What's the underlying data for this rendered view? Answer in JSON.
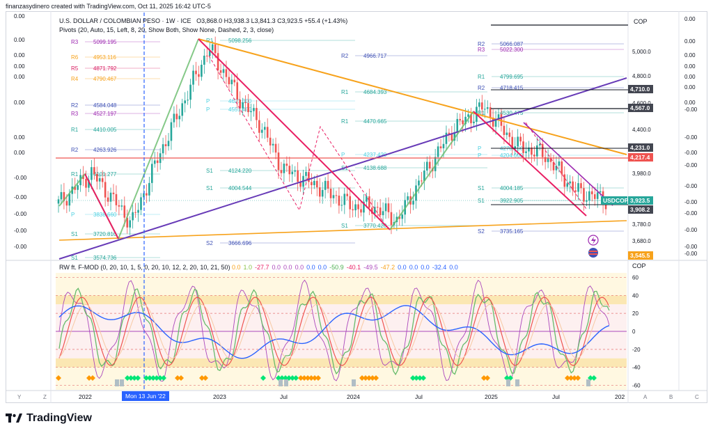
{
  "header": {
    "caption": "finanzasydinero created with TradingView.com, Oct 11, 2025 16:42 UTC-5"
  },
  "legend": {
    "symbol": "U.S. DOLLAR / COLOMBIAN PESO · 1W · ICE",
    "ohlc": "O3,868.0  H3,938.3  L3,841.3  C3,923.5  +55.4 (+1.43%)",
    "pivots": "Pivots (20, Auto, 15, Left, 8, 20, Show Both, Show None, Dashed, 2, 3, close)",
    "indicator": "RW ft. F-MOD (0, 20, 10, 1, 5, 0, 20, 10, 12, 2, 20, 10, 21, 50)",
    "indicator_values": [
      {
        "v": "0.0",
        "color": "#f7a21b"
      },
      {
        "v": "1.0",
        "color": "#8bc34a"
      },
      {
        "v": "-27.7",
        "color": "#e91e63"
      },
      {
        "v": "0.0",
        "color": "#ab47bc"
      },
      {
        "v": "0.0",
        "color": "#ab47bc"
      },
      {
        "v": "0.0",
        "color": "#ab47bc"
      },
      {
        "v": "0.0",
        "color": "#2962ff"
      },
      {
        "v": "0.0",
        "color": "#2962ff"
      },
      {
        "v": "-50.9",
        "color": "#4caf50"
      },
      {
        "v": "-40.1",
        "color": "#e91e63"
      },
      {
        "v": "-49.5",
        "color": "#ab47bc"
      },
      {
        "v": "-47.2",
        "color": "#f7a21b"
      },
      {
        "v": "0.0",
        "color": "#2962ff"
      },
      {
        "v": "0.0",
        "color": "#2962ff"
      },
      {
        "v": "0.0",
        "color": "#2962ff"
      },
      {
        "v": "-32.4",
        "color": "#2962ff"
      },
      {
        "v": "0.0",
        "color": "#2962ff"
      }
    ]
  },
  "colors": {
    "up": "#26a69a",
    "down": "#ef5350",
    "trend_orange": "#f7a21b",
    "trend_purple": "#673ab7",
    "zigzag_green": "#66bb6a",
    "zigzag_red": "#e91e63"
  },
  "chart_data": {
    "type": "candlestick",
    "title": "U.S. DOLLAR / COLOMBIAN PESO · 1W · ICE",
    "currency": "COP",
    "x_ticks": [
      "2022",
      "Mon 13 Jun '22",
      "2023",
      "Jul",
      "2024",
      "Jul",
      "2025",
      "Jul",
      "202"
    ],
    "y_ticks": [
      "5,000.0",
      "4,800.0",
      "4,600.0",
      "4,400.0",
      "4,100.0",
      "3,980.0",
      "3,780.0",
      "3,680.0"
    ],
    "y_range": [
      3545.5,
      5200
    ],
    "price_tags": [
      {
        "label": "4,710.0",
        "value": 4710,
        "color": "#434651"
      },
      {
        "label": "4,567.0",
        "value": 4567,
        "color": "#434651"
      },
      {
        "label": "4,231.0",
        "value": 4231,
        "color": "#434651"
      },
      {
        "label": "4,217.4",
        "value": 4217.4,
        "color": "#ef5350"
      },
      {
        "label": "3,923.5",
        "value": 3923.5,
        "color": "#26a69a"
      },
      {
        "label": "3,908.2",
        "value": 3908.2,
        "color": "#434651"
      },
      {
        "label": "3,545.5",
        "value": 3545.5,
        "color": "#f7a21b"
      }
    ],
    "symbol_tag": "USDCOP",
    "left_scale_labels": [
      "0.00",
      "0.00",
      "0.00",
      "0.00",
      "0.00",
      "0.00",
      "0.00",
      "0.00",
      "-0.00",
      "-0.00",
      "-0.00",
      "-0.00",
      "-0.00",
      "-0.00"
    ],
    "right_scale_labels": [
      "0.00",
      "0.00",
      "0.00",
      "0.00",
      "0.00",
      "0.00",
      "0.00",
      "-0.00",
      "-0.00",
      "-0.00",
      "-0.00",
      "-0.00",
      "-0.00",
      "-0.00",
      "-0.00"
    ],
    "pivots": [
      {
        "label": "R3",
        "value": "5099.195"
      },
      {
        "label": "R6",
        "value": "4953.116"
      },
      {
        "label": "R5",
        "value": "4871.792"
      },
      {
        "label": "R4",
        "value": "4790.467"
      },
      {
        "label": "R2",
        "value": "4584.048"
      },
      {
        "label": "R3",
        "value": "4527.197"
      },
      {
        "label": "R1",
        "value": "4410.005"
      },
      {
        "label": "R2",
        "value": "4263.926"
      },
      {
        "label": "R1",
        "value": "4101.277"
      },
      {
        "label": "P",
        "value": "3838.660"
      },
      {
        "label": "S1",
        "value": "3720.810"
      },
      {
        "label": "S1",
        "value": "3574.736"
      },
      {
        "label": "R1",
        "value": "5098.256"
      },
      {
        "label": "P",
        "value": "4621.300"
      },
      {
        "label": "P",
        "value": "4551.400"
      },
      {
        "label": "S1",
        "value": "4124.220"
      },
      {
        "label": "S1",
        "value": "4004.544"
      },
      {
        "label": "S2",
        "value": "3666.696"
      },
      {
        "label": "R2",
        "value": "4966.717"
      },
      {
        "label": "R1",
        "value": "4684.393"
      },
      {
        "label": "R1",
        "value": "4470.665"
      },
      {
        "label": "P",
        "value": "4237.420"
      },
      {
        "label": "S1",
        "value": "4138.688"
      },
      {
        "label": "S1",
        "value": "3770.420"
      },
      {
        "label": "R2",
        "value": "5066.087"
      },
      {
        "label": "R3",
        "value": "5022.300"
      },
      {
        "label": "R1",
        "value": "4799.695"
      },
      {
        "label": "R2",
        "value": "4718.415"
      },
      {
        "label": "R1",
        "value": "4530.475"
      },
      {
        "label": "P",
        "value": "4270.150"
      },
      {
        "label": "P",
        "value": "4204.000"
      },
      {
        "label": "S1",
        "value": "4004.185"
      },
      {
        "label": "S1",
        "value": "3922.905"
      },
      {
        "label": "S2",
        "value": "3735.165"
      }
    ],
    "oscillator": {
      "y_ticks": [
        "60",
        "40",
        "20",
        "0",
        "-20",
        "-40",
        "-60"
      ],
      "y_range": [
        -65,
        65
      ],
      "label": "COP"
    }
  },
  "bottom_toolbar": [
    "Y",
    "Z",
    "A",
    "B",
    "C"
  ],
  "footer": {
    "brand": "TradingView"
  }
}
